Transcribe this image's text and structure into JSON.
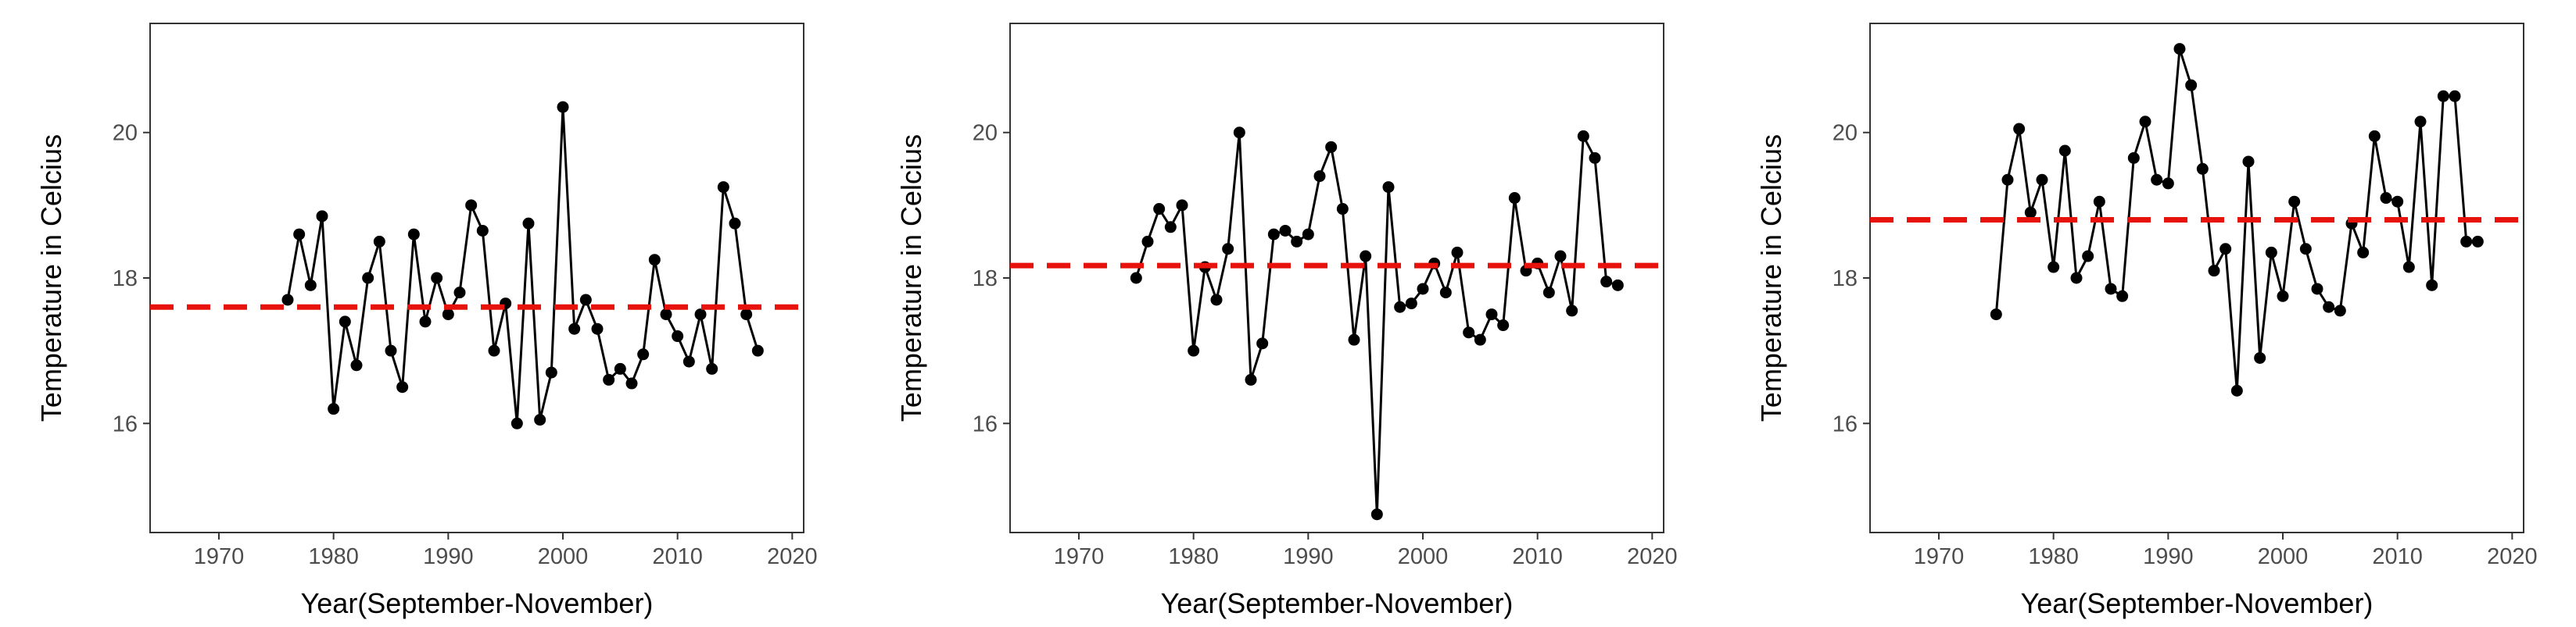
{
  "colors": {
    "series": "#000000",
    "mean_line": "#e8120c",
    "axis": "#333333",
    "tick_label": "#4d4d4d"
  },
  "chart_data": [
    {
      "type": "line",
      "xlabel": "Year(September-November)",
      "ylabel": "Temperature in Celcius",
      "xlim": [
        1964,
        2021
      ],
      "ylim": [
        14.5,
        21.5
      ],
      "xticks": [
        1970,
        1980,
        1990,
        2000,
        2010,
        2020
      ],
      "yticks": [
        16,
        18,
        20
      ],
      "grid": false,
      "mean_line": 17.6,
      "series": [
        {
          "x": [
            1976,
            1977,
            1978,
            1979,
            1980,
            1981,
            1982,
            1983,
            1984,
            1985,
            1986,
            1987,
            1988,
            1989,
            1990,
            1991,
            1992,
            1993,
            1994,
            1995,
            1996,
            1997,
            1998,
            1999,
            2000,
            2001,
            2002,
            2003,
            2004,
            2005,
            2006,
            2007,
            2008,
            2009,
            2010,
            2011,
            2012,
            2013,
            2014,
            2015,
            2016,
            2017
          ],
          "y": [
            17.7,
            18.6,
            17.9,
            18.85,
            16.2,
            17.4,
            16.8,
            18.0,
            18.5,
            17.0,
            16.5,
            18.6,
            17.4,
            18.0,
            17.5,
            17.8,
            19.0,
            18.65,
            17.0,
            17.65,
            16.0,
            18.75,
            16.05,
            16.7,
            20.35,
            17.3,
            17.7,
            17.3,
            16.6,
            16.75,
            16.55,
            16.95,
            18.25,
            17.5,
            17.2,
            16.85,
            17.5,
            16.75,
            19.25,
            18.75,
            17.5,
            17.0
          ]
        }
      ]
    },
    {
      "type": "line",
      "xlabel": "Year(September-November)",
      "ylabel": "Temperature in Celcius",
      "xlim": [
        1964,
        2021
      ],
      "ylim": [
        14.5,
        21.5
      ],
      "xticks": [
        1970,
        1980,
        1990,
        2000,
        2010,
        2020
      ],
      "yticks": [
        16,
        18,
        20
      ],
      "grid": false,
      "mean_line": 18.17,
      "series": [
        {
          "x": [
            1975,
            1976,
            1977,
            1978,
            1979,
            1980,
            1981,
            1982,
            1983,
            1984,
            1985,
            1986,
            1987,
            1988,
            1989,
            1990,
            1991,
            1992,
            1993,
            1994,
            1995,
            1996,
            1997,
            1998,
            1999,
            2000,
            2001,
            2002,
            2003,
            2004,
            2005,
            2006,
            2007,
            2008,
            2009,
            2010,
            2011,
            2012,
            2013,
            2014,
            2015,
            2016,
            2017
          ],
          "y": [
            18.0,
            18.5,
            18.95,
            18.7,
            19.0,
            17.0,
            18.15,
            17.7,
            18.4,
            20.0,
            16.6,
            17.1,
            18.6,
            18.65,
            18.5,
            18.6,
            19.4,
            19.8,
            18.95,
            17.15,
            18.3,
            14.75,
            19.25,
            17.6,
            17.65,
            17.85,
            18.2,
            17.8,
            18.35,
            17.25,
            17.15,
            17.5,
            17.35,
            19.1,
            18.1,
            18.2,
            17.8,
            18.3,
            17.55,
            19.95,
            19.65,
            17.95,
            17.9
          ]
        }
      ]
    },
    {
      "type": "line",
      "xlabel": "Year(September-November)",
      "ylabel": "Temperature in Celcius",
      "xlim": [
        1964,
        2021
      ],
      "ylim": [
        14.5,
        21.5
      ],
      "xticks": [
        1970,
        1980,
        1990,
        2000,
        2010,
        2020
      ],
      "yticks": [
        16,
        18,
        20
      ],
      "grid": false,
      "mean_line": 18.8,
      "series": [
        {
          "x": [
            1975,
            1976,
            1977,
            1978,
            1979,
            1980,
            1981,
            1982,
            1983,
            1984,
            1985,
            1986,
            1987,
            1988,
            1989,
            1990,
            1991,
            1992,
            1993,
            1994,
            1995,
            1996,
            1997,
            1998,
            1999,
            2000,
            2001,
            2002,
            2003,
            2004,
            2005,
            2006,
            2007,
            2008,
            2009,
            2010,
            2011,
            2012,
            2013,
            2014,
            2015,
            2016,
            2017
          ],
          "y": [
            17.5,
            19.35,
            20.05,
            18.9,
            19.35,
            18.15,
            19.75,
            18.0,
            18.3,
            19.05,
            17.85,
            17.75,
            19.65,
            20.15,
            19.35,
            19.3,
            21.15,
            20.65,
            19.5,
            18.1,
            18.4,
            16.45,
            19.6,
            16.9,
            18.35,
            17.75,
            19.05,
            18.4,
            17.85,
            17.6,
            17.55,
            18.75,
            18.35,
            19.95,
            19.1,
            19.05,
            18.15,
            20.15,
            17.9,
            20.5,
            20.5,
            18.5,
            18.5
          ]
        }
      ]
    }
  ]
}
